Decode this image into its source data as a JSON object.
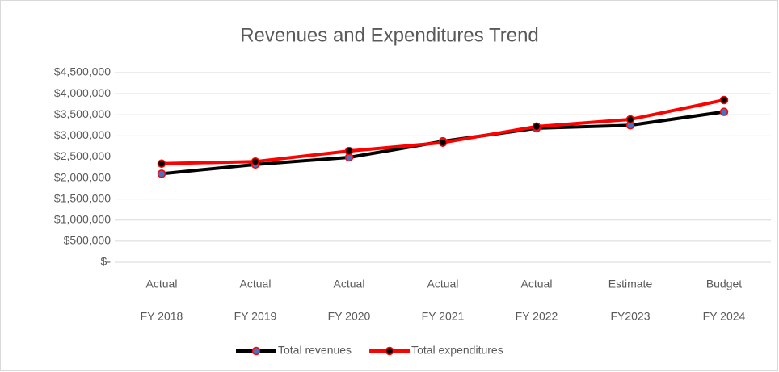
{
  "chart_data": {
    "type": "line",
    "title": "Revenues and Expenditures Trend",
    "categories": [
      [
        "Actual",
        "FY 2018"
      ],
      [
        "Actual",
        "FY 2019"
      ],
      [
        "Actual",
        "FY 2020"
      ],
      [
        "Actual",
        "FY 2021"
      ],
      [
        "Actual",
        "FY 2022"
      ],
      [
        "Estimate",
        "FY2023"
      ],
      [
        "Budget",
        "FY 2024"
      ]
    ],
    "series": [
      {
        "name": "Total revenues",
        "color": "#000000",
        "marker_color": "#4472c4",
        "values": [
          2100000,
          2320000,
          2490000,
          2870000,
          3180000,
          3250000,
          3570000
        ]
      },
      {
        "name": "Total expenditures",
        "color": "#ff0000",
        "marker_color": "#000000",
        "values": [
          2340000,
          2390000,
          2640000,
          2840000,
          3220000,
          3390000,
          3850000
        ]
      }
    ],
    "ylim": [
      0,
      4500000
    ],
    "yticks": [
      {
        "value": 0,
        "label": "$-"
      },
      {
        "value": 500000,
        "label": "$500,000"
      },
      {
        "value": 1000000,
        "label": "$1,000,000"
      },
      {
        "value": 1500000,
        "label": "$1,500,000"
      },
      {
        "value": 2000000,
        "label": "$2,000,000"
      },
      {
        "value": 2500000,
        "label": "$2,500,000"
      },
      {
        "value": 3000000,
        "label": "$3,000,000"
      },
      {
        "value": 3500000,
        "label": "$3,500,000"
      },
      {
        "value": 4000000,
        "label": "$4,000,000"
      },
      {
        "value": 4500000,
        "label": "$4,500,000"
      }
    ],
    "grid": true,
    "legend": "bottom"
  }
}
